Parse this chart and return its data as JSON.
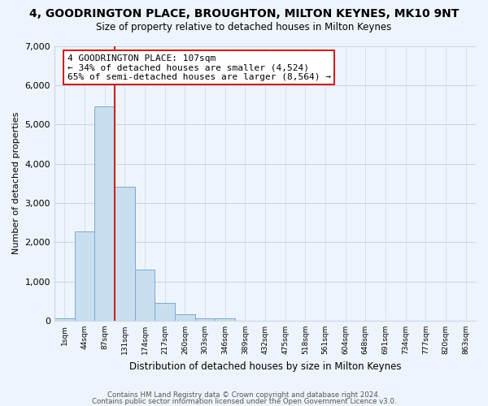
{
  "title": "4, GOODRINGTON PLACE, BROUGHTON, MILTON KEYNES, MK10 9NT",
  "subtitle": "Size of property relative to detached houses in Milton Keynes",
  "xlabel": "Distribution of detached houses by size in Milton Keynes",
  "ylabel": "Number of detached properties",
  "bar_values": [
    60,
    2270,
    5460,
    3420,
    1300,
    460,
    170,
    60,
    60,
    0,
    0,
    0,
    0,
    0,
    0,
    0,
    0,
    0,
    0,
    0,
    0
  ],
  "bar_labels": [
    "1sqm",
    "44sqm",
    "87sqm",
    "131sqm",
    "174sqm",
    "217sqm",
    "260sqm",
    "303sqm",
    "346sqm",
    "389sqm",
    "432sqm",
    "475sqm",
    "518sqm",
    "561sqm",
    "604sqm",
    "648sqm",
    "691sqm",
    "734sqm",
    "777sqm",
    "820sqm",
    "863sqm"
  ],
  "bar_color": "#c8dff0",
  "bar_edge_color": "#7eaacb",
  "vline_color": "#cc2222",
  "annotation_title": "4 GOODRINGTON PLACE: 107sqm",
  "annotation_line1": "← 34% of detached houses are smaller (4,524)",
  "annotation_line2": "65% of semi-detached houses are larger (8,564) →",
  "annotation_box_color": "white",
  "annotation_box_edge": "#cc2222",
  "ylim": [
    0,
    7000
  ],
  "yticks": [
    0,
    1000,
    2000,
    3000,
    4000,
    5000,
    6000,
    7000
  ],
  "footer1": "Contains HM Land Registry data © Crown copyright and database right 2024.",
  "footer2": "Contains public sector information licensed under the Open Government Licence v3.0.",
  "background_color": "#eef4fb",
  "grid_color": "#c8d8e8"
}
